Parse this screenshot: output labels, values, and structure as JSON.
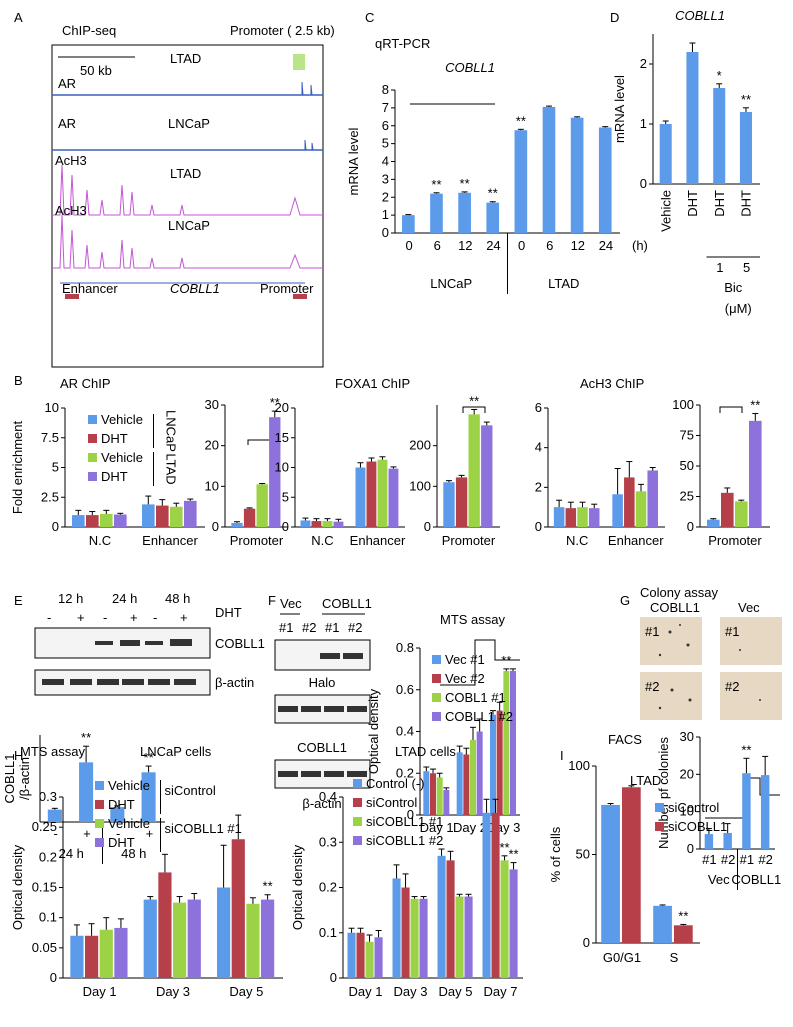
{
  "letters": [
    "A",
    "B",
    "C",
    "D",
    "E",
    "F",
    "G",
    "H",
    "I"
  ],
  "panel_a": {
    "texts": [
      "ChIP-seq",
      "Promoter ( 2.5 kb)",
      "50 kb",
      "LTAD",
      "AR",
      "AR",
      "LNCaP",
      "AcH3",
      "LTAD",
      "AcH3",
      "LNCaP",
      "Enhancer",
      "COBLL1",
      "Promoter"
    ]
  },
  "panel_e_blot": {
    "times": [
      "12 h",
      "24 h",
      "48 h"
    ],
    "treatment": "DHT",
    "signs": [
      "-",
      "+",
      "-",
      "+",
      "-",
      "+"
    ],
    "bands": [
      "COBLL1",
      "β-actin"
    ]
  },
  "panel_f_blot": {
    "groups": [
      "Vec",
      "COBLL1"
    ],
    "lanes": [
      "#1",
      "#2",
      "#1",
      "#2"
    ],
    "bands": [
      "Halo",
      "COBLL1",
      "β-actin"
    ]
  },
  "panel_g_images": {
    "columns": [
      "COBLL1",
      "Vec"
    ],
    "labels": [
      "#1",
      "#1",
      "#2",
      "#2"
    ]
  },
  "chart_data": [
    {
      "type": "bar",
      "subtitle": "qRT-PCR",
      "title": "COBLL1",
      "ylabel": "mRNA level",
      "xlabel": "(h)",
      "categories": [
        "0",
        "6",
        "12",
        "24",
        "0",
        "6",
        "12",
        "24"
      ],
      "groups": [
        "LNCaP",
        "LTAD"
      ],
      "series": [
        {
          "color": "#5b9bea",
          "values": [
            1,
            2.2,
            2.25,
            1.7,
            5.75,
            7.05,
            6.45,
            5.9
          ],
          "errors": [
            0.03,
            0.05,
            0.05,
            0.05,
            0.05,
            0.05,
            0.05,
            0.05
          ]
        }
      ],
      "ylim": [
        0,
        8
      ],
      "yticks": [
        0,
        1,
        2,
        3,
        4,
        5,
        6,
        7,
        8
      ],
      "annotations": [
        {
          "text": "**",
          "category": 1,
          "series": 0
        },
        {
          "text": "**",
          "category": 2,
          "series": 0
        },
        {
          "text": "**",
          "category": 3,
          "series": 0
        },
        {
          "text": "**",
          "category": 4,
          "series": 0
        }
      ]
    },
    {
      "type": "bar",
      "title": "COBLL1",
      "ylabel": "mRNA level",
      "categories": [
        "Vehicle",
        "DHT",
        "DHT",
        "DHT"
      ],
      "dose_labels": [
        null,
        null,
        "1",
        "5"
      ],
      "dose_name": "Bic",
      "dose_unit": "(μM)",
      "series": [
        {
          "color": "#5b9bea",
          "values": [
            1,
            2.2,
            1.6,
            1.2
          ],
          "errors": [
            0.05,
            0.15,
            0.07,
            0.07
          ]
        }
      ],
      "ylim": [
        0,
        2.5
      ],
      "yticks": [
        0,
        1,
        2
      ],
      "annotations": [
        {
          "text": "*",
          "category": 2,
          "series": 0
        },
        {
          "text": "**",
          "category": 3,
          "series": 0
        }
      ]
    },
    {
      "type": "bar",
      "title": "AR ChIP",
      "ylabel": "Fold enrichment",
      "categories": [
        "N.C",
        "Enhancer"
      ],
      "series": [
        {
          "name": "Vehicle",
          "color": "#5b9bea",
          "values": [
            1,
            1.9
          ],
          "errors": [
            0.4,
            0.7
          ]
        },
        {
          "name": "DHT",
          "color": "#b5404a",
          "values": [
            1,
            1.8
          ],
          "errors": [
            0.3,
            0.5
          ]
        },
        {
          "name": "Vehicle",
          "color": "#9cd346",
          "values": [
            1.1,
            1.7
          ],
          "errors": [
            0.3,
            0.3
          ]
        },
        {
          "name": "DHT",
          "color": "#8e72db",
          "values": [
            1.05,
            2.2
          ],
          "errors": [
            0.1,
            0.15
          ]
        }
      ],
      "legend_groups": [
        "LNCaP",
        "LTAD"
      ],
      "ylim": [
        0,
        10
      ],
      "yticks": [
        0,
        2.5,
        5,
        7.5,
        10
      ]
    },
    {
      "type": "bar",
      "categories": [
        "Promoter"
      ],
      "series": [
        {
          "color": "#5b9bea",
          "values": [
            1
          ],
          "errors": [
            0.3
          ]
        },
        {
          "color": "#b5404a",
          "values": [
            4.5
          ],
          "errors": [
            0.2
          ]
        },
        {
          "color": "#9cd346",
          "values": [
            10.5
          ],
          "errors": [
            0.2
          ]
        },
        {
          "color": "#8e72db",
          "values": [
            27
          ],
          "errors": [
            1.5
          ]
        }
      ],
      "ylim": [
        0,
        30
      ],
      "yticks": [
        0,
        10,
        20,
        30
      ],
      "annotations": [
        {
          "text": "**",
          "category": 0,
          "series": 3
        }
      ]
    },
    {
      "type": "bar",
      "title": "FOXA1 ChIP",
      "categories": [
        "N.C",
        "Enhancer"
      ],
      "series": [
        {
          "color": "#5b9bea",
          "values": [
            1.1,
            10
          ],
          "errors": [
            0.4,
            0.8
          ]
        },
        {
          "color": "#b5404a",
          "values": [
            1,
            11
          ],
          "errors": [
            0.4,
            0.6
          ]
        },
        {
          "color": "#9cd346",
          "values": [
            1,
            11.3
          ],
          "errors": [
            0.4,
            0.5
          ]
        },
        {
          "color": "#8e72db",
          "values": [
            0.9,
            9.8
          ],
          "errors": [
            0.4,
            0.3
          ]
        }
      ],
      "ylim": [
        0,
        20
      ],
      "yticks": [
        0,
        5,
        10,
        15,
        20
      ]
    },
    {
      "type": "bar",
      "categories": [
        "Promoter"
      ],
      "series": [
        {
          "color": "#5b9bea",
          "values": [
            110
          ],
          "errors": [
            4
          ]
        },
        {
          "color": "#b5404a",
          "values": [
            122
          ],
          "errors": [
            5
          ]
        },
        {
          "color": "#9cd346",
          "values": [
            277
          ],
          "errors": [
            12
          ]
        },
        {
          "color": "#8e72db",
          "values": [
            250
          ],
          "errors": [
            8
          ]
        }
      ],
      "ylim": [
        0,
        300
      ],
      "yticks": [
        0,
        100,
        200
      ],
      "annotations": [
        {
          "text": "**",
          "category": 0,
          "series": 2
        }
      ]
    },
    {
      "type": "bar",
      "title": "AcH3 ChIP",
      "categories": [
        "N.C",
        "Enhancer"
      ],
      "series": [
        {
          "color": "#5b9bea",
          "values": [
            1,
            1.65
          ],
          "errors": [
            0.35,
            1.3
          ]
        },
        {
          "color": "#b5404a",
          "values": [
            0.95,
            2.5
          ],
          "errors": [
            0.3,
            0.8
          ]
        },
        {
          "color": "#9cd346",
          "values": [
            1,
            1.8
          ],
          "errors": [
            0.25,
            0.35
          ]
        },
        {
          "color": "#8e72db",
          "values": [
            0.95,
            2.85
          ],
          "errors": [
            0.2,
            0.15
          ]
        }
      ],
      "ylim": [
        0,
        6
      ],
      "yticks": [
        0,
        2,
        4,
        6
      ]
    },
    {
      "type": "bar",
      "categories": [
        "Promoter"
      ],
      "series": [
        {
          "color": "#5b9bea",
          "values": [
            6
          ],
          "errors": [
            0.8
          ]
        },
        {
          "color": "#b5404a",
          "values": [
            28
          ],
          "errors": [
            4
          ]
        },
        {
          "color": "#9cd346",
          "values": [
            21
          ],
          "errors": [
            1
          ]
        },
        {
          "color": "#8e72db",
          "values": [
            87
          ],
          "errors": [
            6
          ]
        }
      ],
      "ylim": [
        0,
        100
      ],
      "yticks": [
        0,
        25,
        50,
        75,
        100
      ],
      "annotations": [
        {
          "text": "**",
          "category": 0,
          "series": 3
        }
      ]
    },
    {
      "type": "bar",
      "ylabel": [
        "COBLL1",
        "/β-actin"
      ],
      "categories": [
        "-",
        "+",
        "-",
        "+"
      ],
      "groups": [
        "24 h",
        "48 h"
      ],
      "series": [
        {
          "color": "#5b9bea",
          "values": [
            1,
            4.8,
            1.2,
            4
          ],
          "errors": [
            0.1,
            1.3,
            0.1,
            0.5
          ]
        }
      ],
      "ylim": [
        0,
        7
      ],
      "annotations": [
        {
          "text": "**",
          "category": 1,
          "series": 0
        },
        {
          "text": "**",
          "category": 3,
          "series": 0
        }
      ]
    },
    {
      "type": "bar",
      "title": "MTS assay",
      "ylabel": "Optical density",
      "categories": [
        "Day 1",
        "Day 2",
        "Day 3"
      ],
      "series": [
        {
          "name": "Vec #1",
          "color": "#5b9bea",
          "values": [
            0.21,
            0.3,
            0.48
          ],
          "errors": [
            0.02,
            0.03,
            0.02
          ]
        },
        {
          "name": "Vec #2",
          "color": "#b5404a",
          "values": [
            0.2,
            0.29,
            0.5
          ],
          "errors": [
            0.02,
            0.03,
            0.04
          ]
        },
        {
          "name": "COBL1 #1",
          "color": "#9cd346",
          "values": [
            0.18,
            0.36,
            0.69
          ],
          "errors": [
            0.02,
            0.06,
            0.01
          ]
        },
        {
          "name": "COBLL1 #2",
          "color": "#8e72db",
          "values": [
            0.12,
            0.4,
            0.69
          ],
          "errors": [
            0.01,
            0.06,
            0.01
          ]
        }
      ],
      "ylim": [
        0,
        0.8
      ],
      "yticks": [
        0,
        0.2,
        0.4,
        0.6,
        0.8
      ],
      "annotations": [
        {
          "text": "**",
          "category": 2,
          "series": 2
        }
      ]
    },
    {
      "type": "bar",
      "title": "Colony assay",
      "ylabel": "Number pf colonies",
      "categories": [
        "#1",
        "#2",
        "#1",
        "#2"
      ],
      "groups": [
        "Vec",
        "COBLL1"
      ],
      "series": [
        {
          "color": "#5b9bea",
          "values": [
            4,
            4.3,
            20.3,
            19.8
          ],
          "errors": [
            1.5,
            2.5,
            4,
            5
          ]
        }
      ],
      "ylim": [
        0,
        30
      ],
      "yticks": [
        0,
        10,
        20,
        30
      ],
      "annotations": [
        {
          "text": "**",
          "category": 2,
          "series": 0
        }
      ]
    },
    {
      "type": "bar",
      "title": "MTS assay",
      "subtitle": "LNCaP cells",
      "ylabel": "Optical density",
      "categories": [
        "Day 1",
        "Day 3",
        "Day 5"
      ],
      "series": [
        {
          "name": "Vehicle",
          "color": "#5b9bea",
          "values": [
            0.07,
            0.13,
            0.15
          ],
          "errors": [
            0.018,
            0.005,
            0.07
          ]
        },
        {
          "name": "DHT",
          "color": "#b5404a",
          "values": [
            0.07,
            0.175,
            0.23
          ],
          "errors": [
            0.02,
            0.03,
            0.04
          ]
        },
        {
          "name": "Vehicle",
          "color": "#9cd346",
          "values": [
            0.08,
            0.125,
            0.123
          ],
          "errors": [
            0.02,
            0.01,
            0.01
          ]
        },
        {
          "name": "DHT",
          "color": "#8e72db",
          "values": [
            0.083,
            0.13,
            0.13
          ],
          "errors": [
            0.015,
            0.01,
            0.008
          ]
        }
      ],
      "legend_groups": [
        "siControl",
        "siCOBLL1 #1"
      ],
      "ylim": [
        0,
        0.3
      ],
      "yticks": [
        0,
        0.05,
        0.1,
        0.15,
        0.2,
        0.25,
        0.3
      ],
      "annotations": [
        {
          "text": "**",
          "category": 2,
          "series": 3
        }
      ]
    },
    {
      "type": "bar",
      "title": "LTAD cells",
      "ylabel": "Optical density",
      "categories": [
        "Day 1",
        "Day 3",
        "Day 5",
        "Day 7"
      ],
      "series": [
        {
          "name": "Control (-)",
          "color": "#5b9bea",
          "values": [
            0.1,
            0.22,
            0.27,
            0.365
          ],
          "errors": [
            0.01,
            0.03,
            0.015,
            0.03
          ]
        },
        {
          "name": "siControl",
          "color": "#b5404a",
          "values": [
            0.1,
            0.2,
            0.26,
            0.365
          ],
          "errors": [
            0.01,
            0.03,
            0.02,
            0.03
          ]
        },
        {
          "name": "siCOBLL1 #1",
          "color": "#9cd346",
          "values": [
            0.08,
            0.175,
            0.18,
            0.26
          ],
          "errors": [
            0.015,
            0.005,
            0.005,
            0.01
          ]
        },
        {
          "name": "siCOBLL1 #2",
          "color": "#8e72db",
          "values": [
            0.09,
            0.175,
            0.18,
            0.24
          ],
          "errors": [
            0.015,
            0.005,
            0.005,
            0.015
          ]
        }
      ],
      "ylim": [
        0,
        0.4
      ],
      "yticks": [
        0,
        0.1,
        0.2,
        0.3,
        0.4
      ],
      "annotations": [
        {
          "text": "**",
          "category": 3,
          "series": 2
        },
        {
          "text": "**",
          "category": 3,
          "series": 3
        }
      ]
    },
    {
      "type": "bar",
      "title": "FACS",
      "subtitle": "LTAD",
      "ylabel": "% of cells",
      "categories": [
        "G0/G1",
        "S"
      ],
      "series": [
        {
          "name": "siControl",
          "color": "#5b9bea",
          "values": [
            78,
            21
          ],
          "errors": [
            0.8,
            0.5
          ]
        },
        {
          "name": "siCOBLL1",
          "color": "#b5404a",
          "values": [
            88,
            10
          ],
          "errors": [
            0.8,
            0.5
          ]
        }
      ],
      "ylim": [
        0,
        100
      ],
      "yticks": [
        0,
        50,
        100
      ],
      "annotations": [
        {
          "text": "**",
          "category": 1,
          "series": 1
        }
      ]
    }
  ]
}
